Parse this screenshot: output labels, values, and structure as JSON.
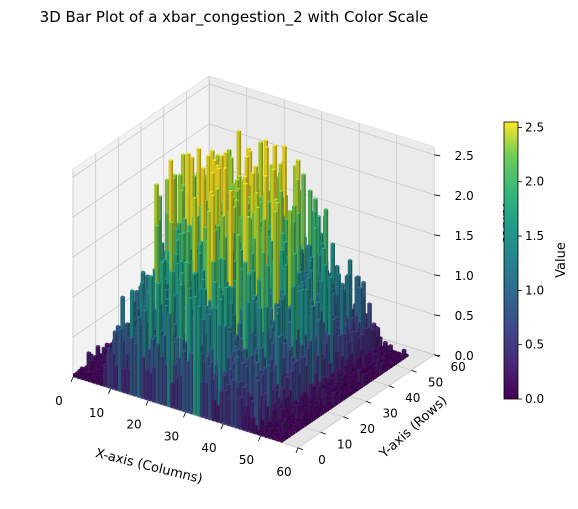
{
  "chart_data": {
    "type": "bar3d",
    "title": "3D Bar Plot of a xbar_congestion_2 with Color Scale",
    "xlabel": "X-axis (Columns)",
    "ylabel": "Y-axis (Rows)",
    "zlabel": "Values",
    "colorbar_label": "Value",
    "colormap": "viridis",
    "xlim": [
      0,
      60
    ],
    "ylim": [
      0,
      60
    ],
    "zlim": [
      0,
      2.5
    ],
    "x_ticks": [
      "0",
      "10",
      "20",
      "30",
      "40",
      "50",
      "60"
    ],
    "y_ticks": [
      "0",
      "10",
      "20",
      "30",
      "40",
      "50",
      "60"
    ],
    "z_ticks": [
      "0.0",
      "0.5",
      "1.0",
      "1.5",
      "2.0",
      "2.5"
    ],
    "colorbar_ticks": [
      "0.0",
      "0.5",
      "1.0",
      "1.5",
      "2.0",
      "2.5"
    ],
    "colorbar_range": [
      0,
      2.55
    ],
    "grid": true,
    "colorbar_position": "right",
    "grid_size": [
      56,
      56
    ],
    "note_values": "Matrix of 56x56 bars; higher values (about 1.5–2.5) in central region of columns ~10–45, low values (~0.0–0.5) near edges"
  }
}
